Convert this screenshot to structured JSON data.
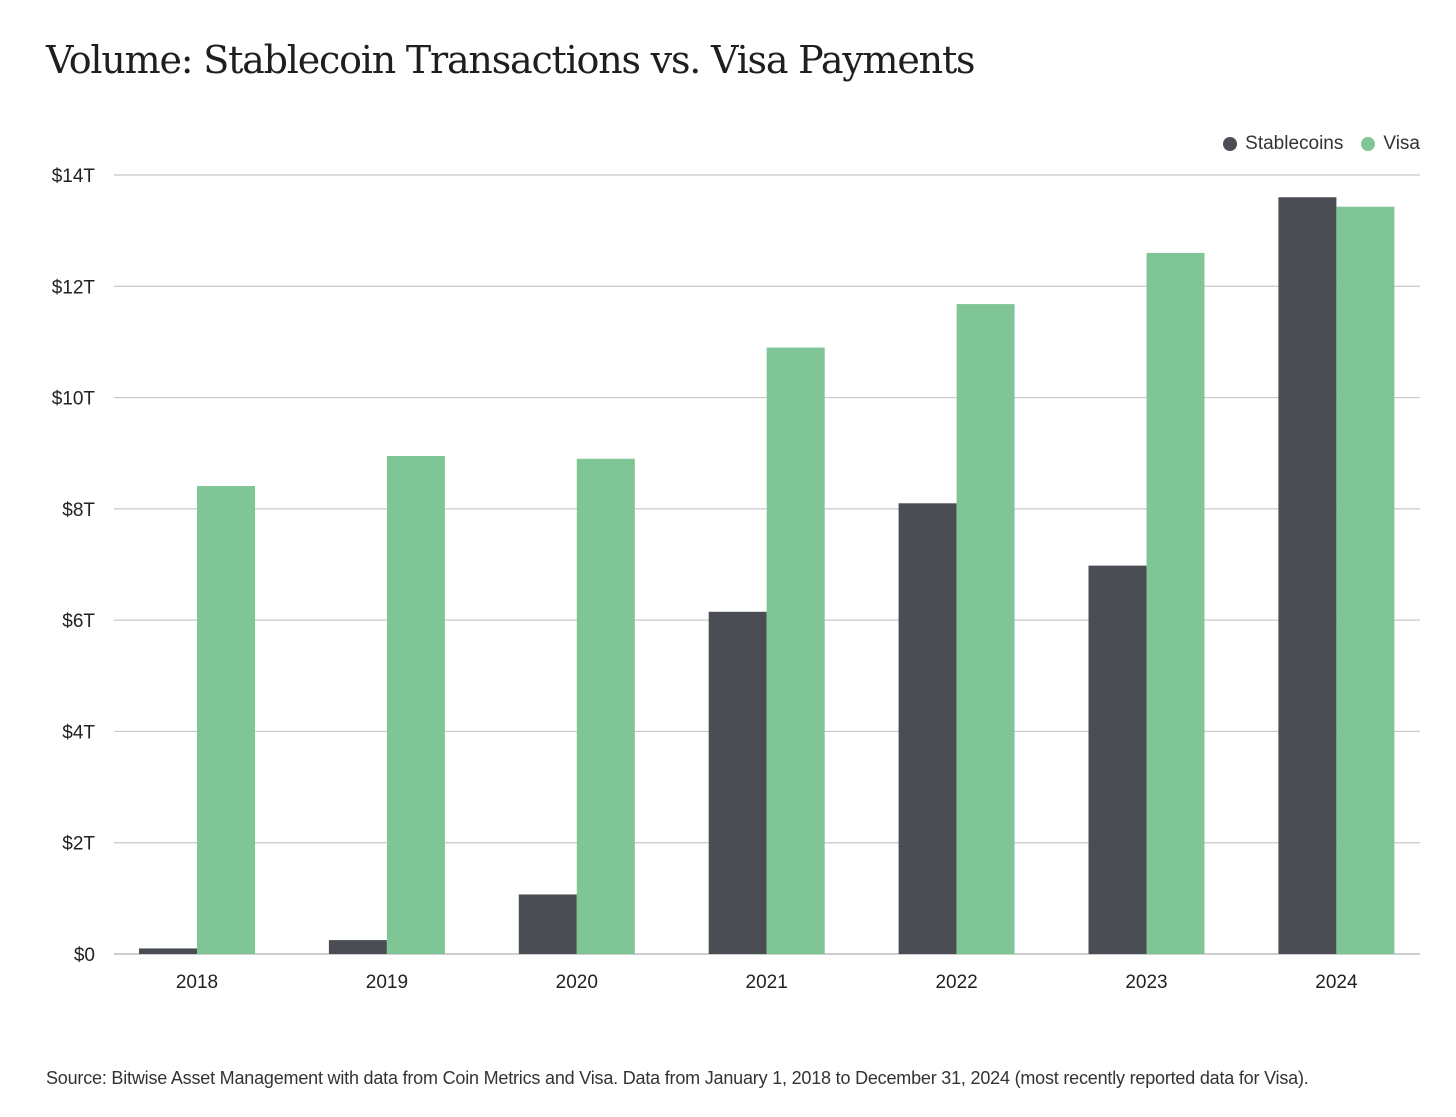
{
  "colors": {
    "stablecoins": "#4a4e54",
    "visa": "#80c596",
    "grid": "#c8c8c8",
    "axis_text": "#222222"
  },
  "chart_data": {
    "type": "bar",
    "title": "Volume: Stablecoin Transactions vs. Visa Payments",
    "xlabel": "",
    "ylabel": "",
    "categories": [
      "2018",
      "2019",
      "2020",
      "2021",
      "2022",
      "2023",
      "2024"
    ],
    "series": [
      {
        "name": "Stablecoins",
        "color": "#4a4e54",
        "values": [
          0.1,
          0.25,
          1.07,
          6.15,
          8.1,
          6.98,
          13.6
        ]
      },
      {
        "name": "Visa",
        "color": "#80c596",
        "values": [
          8.41,
          8.95,
          8.9,
          10.9,
          11.68,
          12.6,
          13.43
        ]
      }
    ],
    "ylim": [
      0,
      14
    ],
    "yticks": [
      0,
      2,
      4,
      6,
      8,
      10,
      12,
      14
    ],
    "ytick_labels": [
      "$0",
      "$2T",
      "$4T",
      "$6T",
      "$8T",
      "$10T",
      "$12T",
      "$14T"
    ],
    "grid": true,
    "legend_position": "top-right",
    "source": "Source: Bitwise Asset Management with data from Coin Metrics and Visa. Data from January 1, 2018 to December 31, 2024 (most recently reported data for Visa)."
  }
}
